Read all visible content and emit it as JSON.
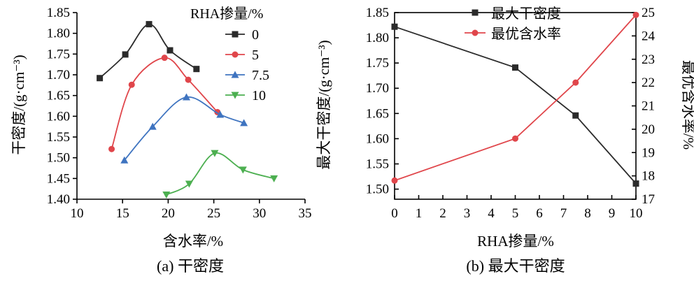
{
  "chart_data": [
    {
      "type": "line",
      "caption": "(a) 干密度",
      "xlabel": "含水率/%",
      "ylabel": "干密度/(g·cm⁻³)",
      "xlim": [
        10,
        35
      ],
      "ylim": [
        1.4,
        1.85
      ],
      "xticks": [
        "10",
        "15",
        "20",
        "25",
        "30",
        "35"
      ],
      "yticks": [
        "1.40",
        "1.45",
        "1.50",
        "1.55",
        "1.60",
        "1.65",
        "1.70",
        "1.75",
        "1.80",
        "1.85"
      ],
      "legend_title": "RHA掺量/%",
      "legend_position": "top-right",
      "series": [
        {
          "name": "0",
          "color": "#2b2b2b",
          "marker": "square",
          "x": [
            12.5,
            15.3,
            17.9,
            20.2,
            23.1
          ],
          "y": [
            1.692,
            1.749,
            1.822,
            1.759,
            1.714
          ]
        },
        {
          "name": "5",
          "color": "#e0464b",
          "marker": "circle",
          "x": [
            13.8,
            16.0,
            19.6,
            22.2,
            25.4
          ],
          "y": [
            1.521,
            1.676,
            1.741,
            1.688,
            1.61
          ]
        },
        {
          "name": "7.5",
          "color": "#3f74c0",
          "marker": "triangle-up",
          "x": [
            15.2,
            18.3,
            22.0,
            25.7,
            28.3
          ],
          "y": [
            1.494,
            1.575,
            1.646,
            1.604,
            1.584
          ]
        },
        {
          "name": "10",
          "color": "#4caf50",
          "marker": "triangle-down",
          "x": [
            19.8,
            22.3,
            25.1,
            28.2,
            31.6
          ],
          "y": [
            1.411,
            1.437,
            1.511,
            1.471,
            1.45
          ]
        }
      ]
    },
    {
      "type": "line",
      "caption": "(b) 最大干密度",
      "xlabel": "RHA掺量/%",
      "ylabel_left": "最大干密度/(g·cm⁻³)",
      "ylabel_right": "最优含水率/%",
      "xlim": [
        0,
        10
      ],
      "ylim_left": [
        1.48,
        1.85
      ],
      "ylim_right": [
        17,
        25
      ],
      "xticks": [
        "0",
        "1",
        "2",
        "3",
        "4",
        "5",
        "6",
        "7",
        "8",
        "9",
        "10"
      ],
      "yticks_left": [
        "1.50",
        "1.55",
        "1.60",
        "1.65",
        "1.70",
        "1.75",
        "1.80",
        "1.85"
      ],
      "yticks_right": [
        "17",
        "18",
        "19",
        "20",
        "21",
        "22",
        "23",
        "24",
        "25"
      ],
      "legend_position": "top-center",
      "series": [
        {
          "name": "最大干密度",
          "axis": "left",
          "color": "#2b2b2b",
          "marker": "square",
          "x": [
            0,
            5,
            7.5,
            10
          ],
          "y": [
            1.822,
            1.741,
            1.646,
            1.511
          ]
        },
        {
          "name": "最优含水率",
          "axis": "right",
          "color": "#e0464b",
          "marker": "circle",
          "x": [
            0,
            5,
            7.5,
            10
          ],
          "y": [
            17.8,
            19.6,
            22.0,
            24.9
          ]
        }
      ]
    }
  ]
}
